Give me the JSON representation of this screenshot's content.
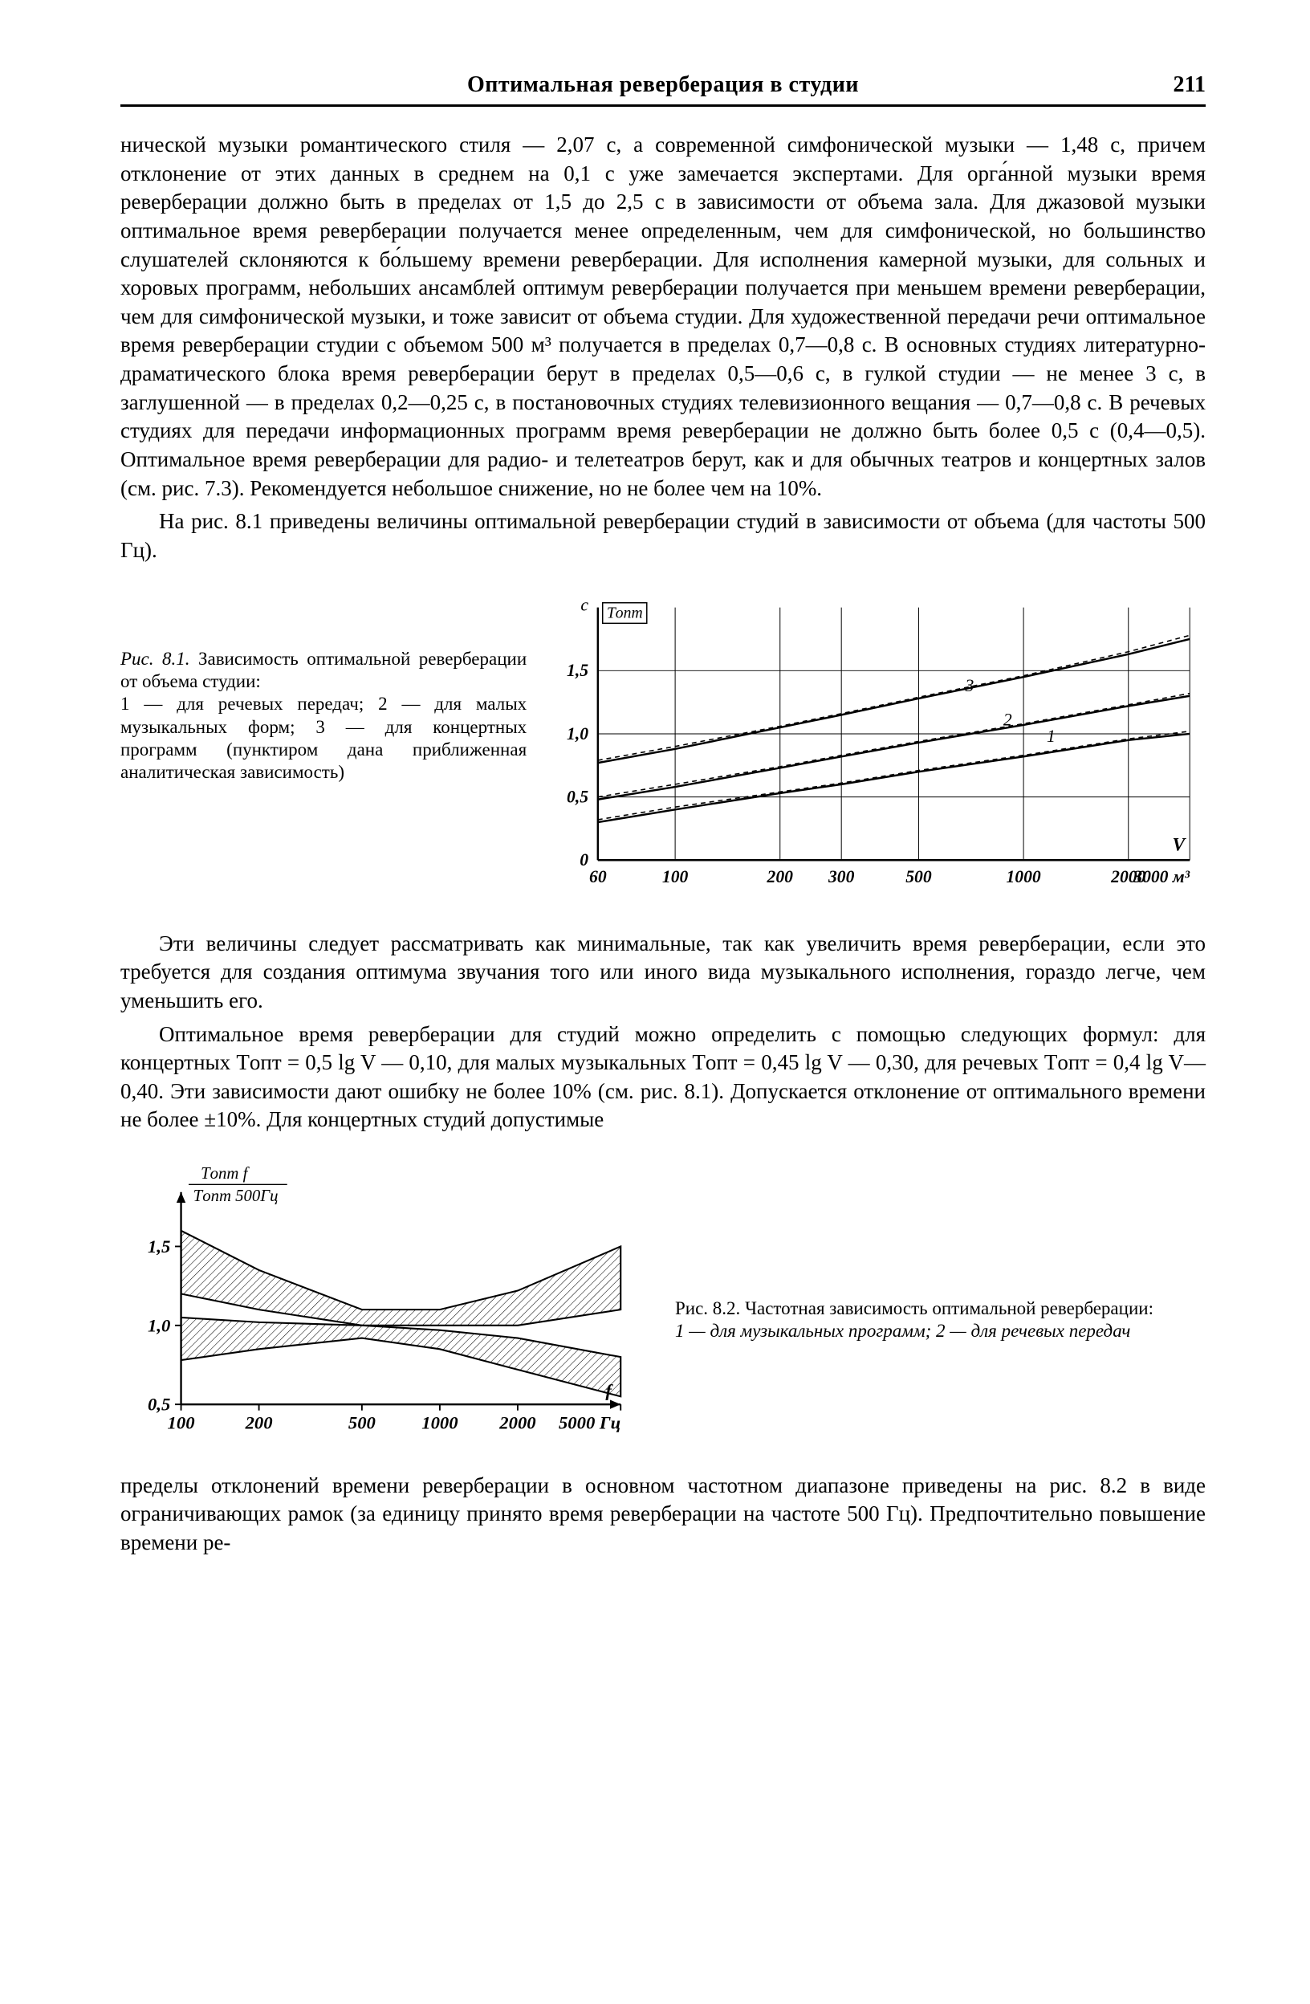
{
  "header": {
    "title": "Оптимальная реверберация в студии",
    "page_number": "211"
  },
  "paragraphs": {
    "p1": "нической музыки романтического стиля — 2,07 с, а современной симфонической музыки — 1,48 с, причем отклонение от этих данных в среднем на 0,1 с уже замечается экспертами. Для орга́нной музыки время реверберации должно быть в пределах от 1,5 до 2,5 с в зависимости от объема зала. Для джазовой музыки оптимальное время реверберации получается менее определенным, чем для симфонической, но большинство слушателей склоняются к бо́льшему времени реверберации. Для исполнения камерной музыки, для сольных и хоровых программ, небольших ансамблей оптимум реверберации получается при меньшем времени реверберации, чем для симфонической музыки, и тоже зависит от объема студии. Для художественной передачи речи оптимальное время реверберации студии с объемом 500 м³ получается в пределах 0,7—0,8 с. В основных студиях литературно-драматического блока время реверберации берут в пределах 0,5—0,6 с, в гулкой студии — не менее 3 с, в заглушенной — в пределах 0,2—0,25 с, в постановочных студиях телевизионного вещания — 0,7—0,8 с. В речевых студиях для передачи информационных программ время реверберации не должно быть более 0,5 с (0,4—0,5). Оптимальное время реверберации для радио- и телетеатров берут, как и для обычных театров и концертных залов (см. рис. 7.3). Рекомендуется небольшое снижение, но не более чем на 10%.",
    "p2": "На рис. 8.1 приведены величины оптимальной реверберации студий в зависимости от объема (для частоты 500 Гц).",
    "p3": "Эти величины следует рассматривать как минимальные, так как увеличить время реверберации, если это требуется для создания оптимума звучания того или иного вида музыкального исполнения, гораздо легче, чем уменьшить его.",
    "p4": "Оптимальное время реверберации для студий можно определить с помощью следующих формул: для концертных Tопт = 0,5 lg V — 0,10, для малых музыкальных Tопт = 0,45 lg V — 0,30, для речевых Tопт = 0,4 lg V—0,40. Эти зависимости дают ошибку не более 10% (см. рис. 8.1). Допускается отклонение от оптимального времени не более ±10%. Для концертных студий допустимые",
    "p5": "пределы отклонений времени реверберации в основном частотном диапазоне приведены на рис. 8.2 в виде ограничивающих рамок (за единицу принято время реверберации на частоте 500 Гц). Предпочтительно повышение времени ре-"
  },
  "fig81": {
    "caption_head": "Рис. 8.1.",
    "caption_body": "Зависимость оптимальной реверберации от объема студии:",
    "caption_legend": "1 — для речевых передач; 2 — для малых музыкальных форм; 3 — для концертных программ (пунктиром дана приближенная аналитическая зависимость)",
    "chart": {
      "type": "line",
      "x_axis": {
        "label": "V",
        "unit_label": "м³",
        "scale": "log",
        "range_label_min": "60",
        "range_label_max": "3000",
        "min": 60,
        "max": 3000,
        "ticks": [
          60,
          100,
          200,
          300,
          500,
          1000,
          2000,
          3000
        ],
        "tick_labels": [
          "60",
          "100",
          "200",
          "300",
          "500",
          "1000",
          "2000",
          "3000 м³"
        ]
      },
      "y_axis": {
        "label": "с",
        "top_label": "Tопт",
        "min": 0,
        "max": 2.0,
        "ticks": [
          0,
          0.5,
          1.0,
          1.5
        ],
        "tick_labels": [
          "0",
          "0,5",
          "1,0",
          "1,5"
        ]
      },
      "grid_color": "#000000",
      "background_color": "#ffffff",
      "line_width_solid": 2.5,
      "line_width_dash": 1.6,
      "dash_pattern": "6,5",
      "series": [
        {
          "id": "1",
          "label": "1",
          "style": "solid",
          "points": [
            [
              60,
              0.3
            ],
            [
              100,
              0.4
            ],
            [
              200,
              0.53
            ],
            [
              300,
              0.6
            ],
            [
              500,
              0.7
            ],
            [
              1000,
              0.82
            ],
            [
              2000,
              0.95
            ],
            [
              3000,
              1.0
            ]
          ]
        },
        {
          "id": "1d",
          "style": "dashed",
          "points": [
            [
              60,
              0.32
            ],
            [
              100,
              0.42
            ],
            [
              200,
              0.54
            ],
            [
              300,
              0.61
            ],
            [
              500,
              0.71
            ],
            [
              1000,
              0.83
            ],
            [
              2000,
              0.96
            ],
            [
              3000,
              1.02
            ]
          ]
        },
        {
          "id": "2",
          "label": "2",
          "style": "solid",
          "points": [
            [
              60,
              0.48
            ],
            [
              100,
              0.58
            ],
            [
              200,
              0.73
            ],
            [
              300,
              0.82
            ],
            [
              500,
              0.93
            ],
            [
              1000,
              1.07
            ],
            [
              2000,
              1.22
            ],
            [
              3000,
              1.3
            ]
          ]
        },
        {
          "id": "2d",
          "style": "dashed",
          "points": [
            [
              60,
              0.5
            ],
            [
              100,
              0.6
            ],
            [
              200,
              0.74
            ],
            [
              300,
              0.83
            ],
            [
              500,
              0.94
            ],
            [
              1000,
              1.08
            ],
            [
              2000,
              1.23
            ],
            [
              3000,
              1.32
            ]
          ]
        },
        {
          "id": "3",
          "label": "3",
          "style": "solid",
          "points": [
            [
              60,
              0.77
            ],
            [
              100,
              0.88
            ],
            [
              200,
              1.05
            ],
            [
              300,
              1.15
            ],
            [
              500,
              1.28
            ],
            [
              1000,
              1.45
            ],
            [
              2000,
              1.63
            ],
            [
              3000,
              1.75
            ]
          ]
        },
        {
          "id": "3d",
          "style": "dashed",
          "points": [
            [
              60,
              0.79
            ],
            [
              100,
              0.9
            ],
            [
              200,
              1.06
            ],
            [
              300,
              1.16
            ],
            [
              500,
              1.29
            ],
            [
              1000,
              1.46
            ],
            [
              2000,
              1.65
            ],
            [
              3000,
              1.78
            ]
          ]
        }
      ],
      "series_label_positions": {
        "1": [
          1200,
          0.9
        ],
        "2": [
          900,
          1.03
        ],
        "3": [
          700,
          1.3
        ]
      }
    }
  },
  "fig82": {
    "caption_head": "Рис. 8.2.",
    "caption_body": "Частотная зависимость оптимальной реверберации:",
    "caption_legend": "1 — для музыкальных программ; 2 — для речевых передач",
    "chart": {
      "type": "area",
      "y_numerator": "Tопт f",
      "y_denominator": "Tопт 500Гц",
      "x_axis": {
        "label": "f",
        "unit_label": "Гц",
        "scale": "log",
        "min": 100,
        "max": 5000,
        "ticks": [
          100,
          200,
          500,
          1000,
          2000,
          5000
        ],
        "tick_labels": [
          "100",
          "200",
          "500",
          "1000",
          "2000",
          "5000 Гц"
        ]
      },
      "y_axis": {
        "min": 0.5,
        "max": 1.7,
        "ticks": [
          0.5,
          1.0,
          1.5
        ],
        "tick_labels": [
          "0,5",
          "1,0",
          "1,5"
        ]
      },
      "grid_color": "#000000",
      "background_color": "#ffffff",
      "hatch_angle_deg": 45,
      "hatch_spacing": 7,
      "line_width": 2.2,
      "band1_upper": [
        [
          100,
          1.6
        ],
        [
          200,
          1.35
        ],
        [
          500,
          1.1
        ],
        [
          1000,
          1.1
        ],
        [
          2000,
          1.22
        ],
        [
          5000,
          1.5
        ]
      ],
      "band1_lower": [
        [
          100,
          1.2
        ],
        [
          200,
          1.1
        ],
        [
          500,
          1.0
        ],
        [
          1000,
          1.0
        ],
        [
          2000,
          1.0
        ],
        [
          5000,
          1.1
        ]
      ],
      "band2_upper": [
        [
          100,
          1.05
        ],
        [
          200,
          1.02
        ],
        [
          500,
          1.0
        ],
        [
          1000,
          0.97
        ],
        [
          2000,
          0.92
        ],
        [
          5000,
          0.8
        ]
      ],
      "band2_lower": [
        [
          100,
          0.78
        ],
        [
          200,
          0.85
        ],
        [
          500,
          0.92
        ],
        [
          1000,
          0.85
        ],
        [
          2000,
          0.72
        ],
        [
          5000,
          0.55
        ]
      ]
    }
  }
}
